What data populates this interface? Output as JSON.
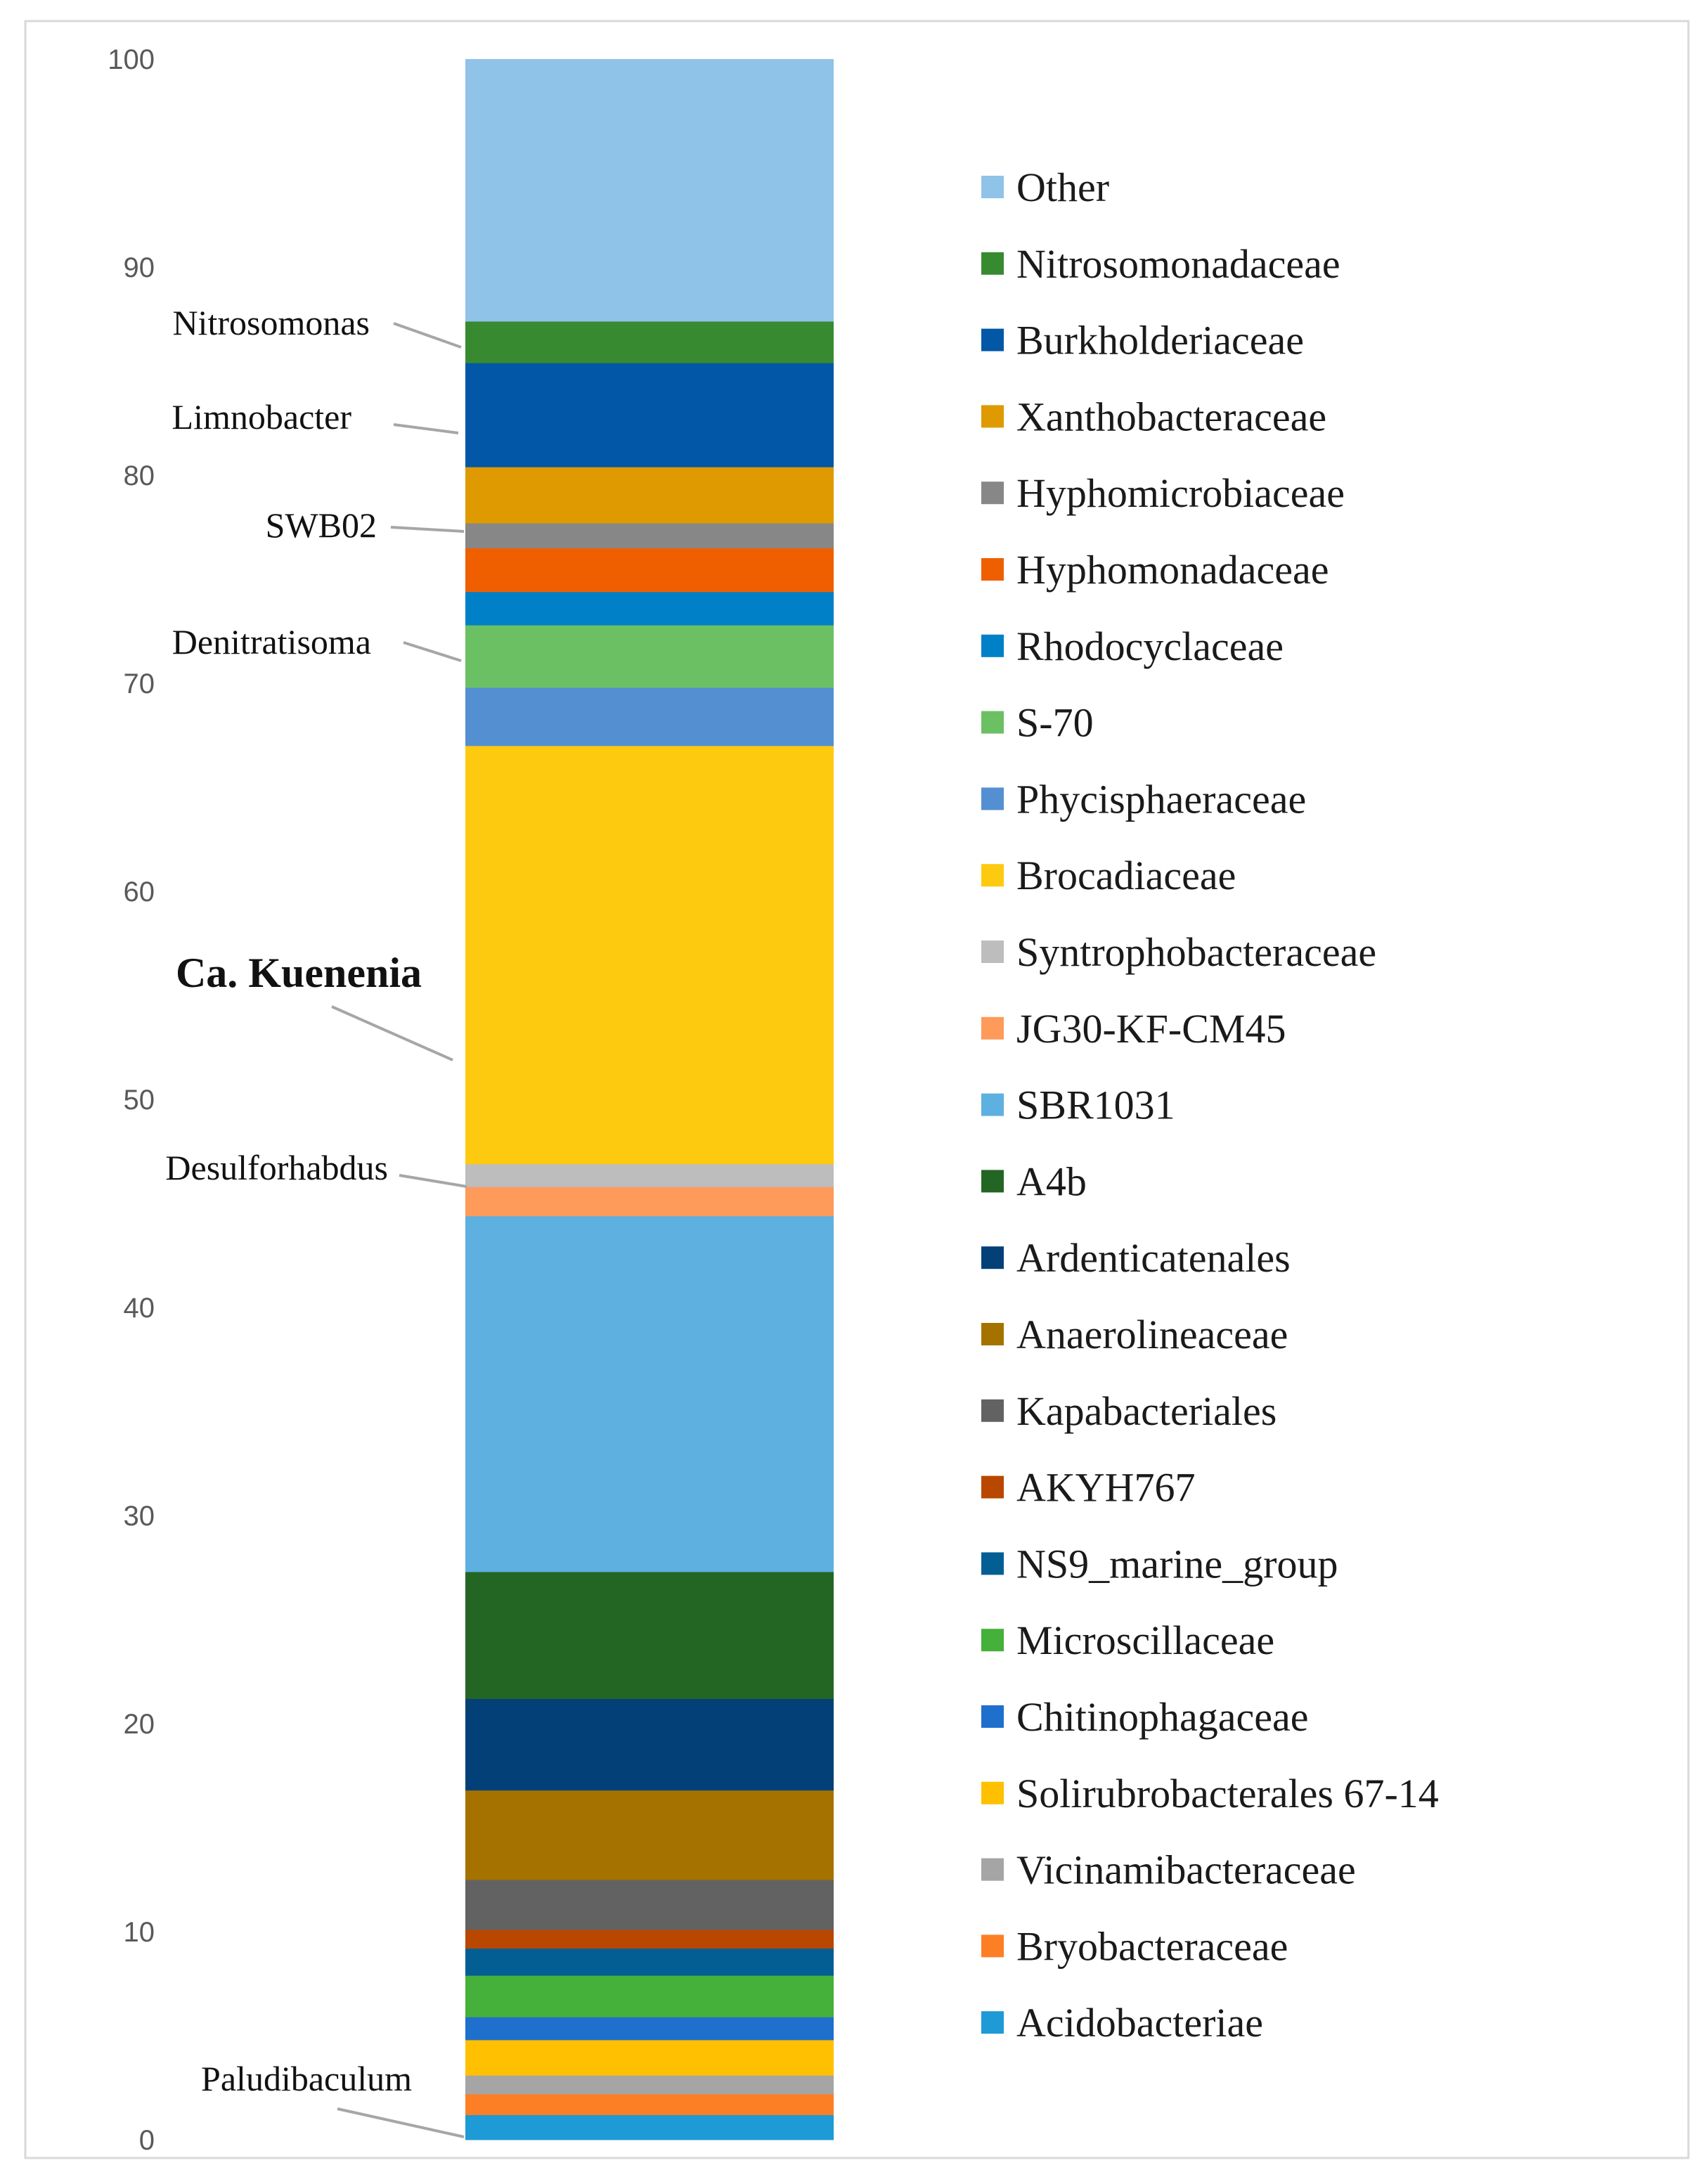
{
  "chart_data": {
    "type": "bar",
    "subtype": "stacked-100",
    "title": "",
    "xlabel": "",
    "ylabel": "",
    "ylim": [
      0,
      100
    ],
    "yticks": [
      "0",
      "10",
      "20",
      "30",
      "40",
      "50",
      "60",
      "70",
      "80",
      "90",
      "100"
    ],
    "grid": false,
    "legend_position": "right",
    "series": [
      {
        "name": "Acidobacteriae",
        "value": 1.2,
        "color": "#1e9ad6"
      },
      {
        "name": "Bryobacteraceae",
        "value": 1.0,
        "color": "#fd7f25"
      },
      {
        "name": "Vicinamibacteraceae",
        "value": 0.9,
        "color": "#a5a5a5"
      },
      {
        "name": "Solirubrobacterales 67-14",
        "value": 1.7,
        "color": "#fec000"
      },
      {
        "name": "Chitinophagaceae",
        "value": 1.1,
        "color": "#1f6fcc"
      },
      {
        "name": "Microscillaceae",
        "value": 2.0,
        "color": "#45b03a"
      },
      {
        "name": "NS9_marine_group",
        "value": 1.3,
        "color": "#035e94"
      },
      {
        "name": "AKYH767",
        "value": 0.9,
        "color": "#b94700"
      },
      {
        "name": "Kapabacteriales",
        "value": 2.4,
        "color": "#626262"
      },
      {
        "name": "Anaerolineaceae",
        "value": 4.3,
        "color": "#a57200"
      },
      {
        "name": "Ardenticatenales",
        "value": 4.4,
        "color": "#034077"
      },
      {
        "name": "A4b",
        "value": 6.1,
        "color": "#236623"
      },
      {
        "name": "SBR1031",
        "value": 17.1,
        "color": "#5eb0e0"
      },
      {
        "name": "JG30-KF-CM45",
        "value": 1.4,
        "color": "#fe9a5a"
      },
      {
        "name": "Syntrophobacteraceae",
        "value": 1.1,
        "color": "#bdbdbd"
      },
      {
        "name": "Brocadiaceae",
        "value": 20.1,
        "color": "#fdca10"
      },
      {
        "name": "Phycisphaeraceae",
        "value": 2.8,
        "color": "#548fd2"
      },
      {
        "name": "S-70",
        "value": 3.0,
        "color": "#6cc064"
      },
      {
        "name": "Rhodocyclaceae",
        "value": 1.6,
        "color": "#0080c6"
      },
      {
        "name": "Hyphomonadaceae",
        "value": 2.1,
        "color": "#ef5f00"
      },
      {
        "name": "Hyphomicrobiaceae",
        "value": 1.2,
        "color": "#878787"
      },
      {
        "name": "Xanthobacteraceae",
        "value": 2.7,
        "color": "#de9a00"
      },
      {
        "name": "Burkholderiaceae",
        "value": 5.0,
        "color": "#0258a6"
      },
      {
        "name": "Nitrosomonadaceae",
        "value": 2.0,
        "color": "#388a30"
      },
      {
        "name": "Other",
        "value": 12.6,
        "color": "#8fc3e8"
      }
    ],
    "annotations": [
      {
        "text": "Nitrosomonas",
        "series": "Nitrosomonadaceae",
        "bold": false
      },
      {
        "text": "Limnobacter",
        "series": "Burkholderiaceae",
        "bold": false
      },
      {
        "text": "SWB02",
        "series": "Hyphomicrobiaceae",
        "bold": false
      },
      {
        "text": "Denitratisoma",
        "series": "S-70",
        "bold": false
      },
      {
        "text": "Ca. Kuenenia",
        "series": "Brocadiaceae",
        "bold": true
      },
      {
        "text": "Desulforhabdus",
        "series": "Syntrophobacteraceae",
        "bold": false
      },
      {
        "text": "Paludibaculum",
        "series": "Acidobacteriae",
        "bold": false
      }
    ]
  }
}
